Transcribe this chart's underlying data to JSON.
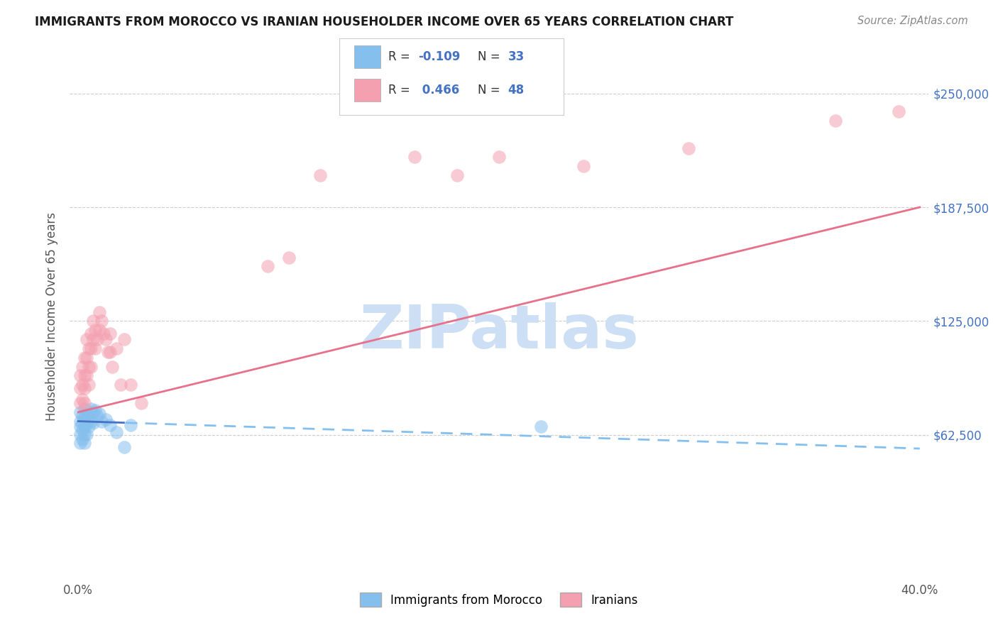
{
  "title": "IMMIGRANTS FROM MOROCCO VS IRANIAN HOUSEHOLDER INCOME OVER 65 YEARS CORRELATION CHART",
  "source": "Source: ZipAtlas.com",
  "ylabel": "Householder Income Over 65 years",
  "xlim": [
    -0.004,
    0.404
  ],
  "ylim": [
    -15000,
    270000
  ],
  "yticks": [
    62500,
    125000,
    187500,
    250000
  ],
  "ytick_labels": [
    "$62,500",
    "$125,000",
    "$187,500",
    "$250,000"
  ],
  "color_morocco": "#85BFEE",
  "color_iran": "#F4A0B0",
  "color_trend_morocco_solid": "#4472C4",
  "color_trend_morocco_dash": "#85BFEE",
  "color_trend_iran": "#E8708A",
  "watermark_text": "ZIPatlas",
  "watermark_color": "#CCDFF5",
  "morocco_x": [
    0.001,
    0.001,
    0.001,
    0.001,
    0.001,
    0.002,
    0.002,
    0.002,
    0.002,
    0.003,
    0.003,
    0.003,
    0.003,
    0.003,
    0.004,
    0.004,
    0.004,
    0.005,
    0.005,
    0.006,
    0.006,
    0.007,
    0.007,
    0.008,
    0.009,
    0.01,
    0.011,
    0.013,
    0.015,
    0.018,
    0.022,
    0.025,
    0.22
  ],
  "morocco_y": [
    75000,
    70000,
    67000,
    63000,
    58000,
    73000,
    69000,
    65000,
    60000,
    77000,
    72000,
    67000,
    63000,
    58000,
    74000,
    69000,
    63000,
    73000,
    67000,
    77000,
    70000,
    75000,
    69000,
    76000,
    73000,
    74000,
    70000,
    71000,
    68000,
    64000,
    56000,
    68000,
    67000
  ],
  "iran_x": [
    0.001,
    0.001,
    0.001,
    0.002,
    0.002,
    0.002,
    0.003,
    0.003,
    0.003,
    0.003,
    0.004,
    0.004,
    0.004,
    0.005,
    0.005,
    0.005,
    0.006,
    0.006,
    0.006,
    0.007,
    0.007,
    0.008,
    0.008,
    0.009,
    0.01,
    0.01,
    0.011,
    0.012,
    0.013,
    0.014,
    0.015,
    0.015,
    0.016,
    0.018,
    0.02,
    0.022,
    0.025,
    0.03,
    0.09,
    0.1,
    0.115,
    0.16,
    0.18,
    0.2,
    0.24,
    0.29,
    0.36,
    0.39
  ],
  "iran_y": [
    80000,
    88000,
    95000,
    100000,
    90000,
    82000,
    105000,
    95000,
    88000,
    80000,
    115000,
    105000,
    95000,
    110000,
    100000,
    90000,
    118000,
    110000,
    100000,
    125000,
    115000,
    120000,
    110000,
    115000,
    130000,
    120000,
    125000,
    118000,
    115000,
    108000,
    118000,
    108000,
    100000,
    110000,
    90000,
    115000,
    90000,
    80000,
    155000,
    160000,
    205000,
    215000,
    205000,
    215000,
    210000,
    220000,
    235000,
    240000
  ],
  "trend_iran_x0": 0.0,
  "trend_iran_y0": 75000,
  "trend_iran_x1": 0.4,
  "trend_iran_y1": 187500,
  "trend_morocco_x0": 0.0,
  "trend_morocco_y0": 70000,
  "trend_morocco_x1": 0.4,
  "trend_morocco_y1": 55000,
  "solid_limit": 0.022
}
